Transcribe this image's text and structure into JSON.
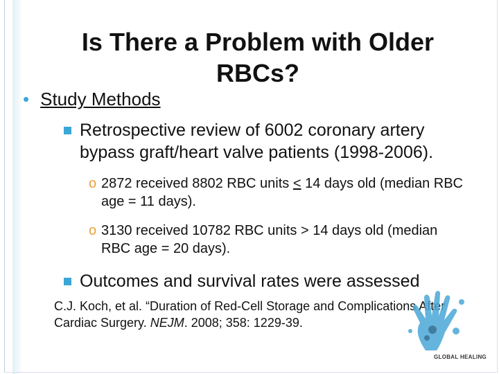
{
  "title": "Is There a Problem with Older RBCs?",
  "bullet": "Study Methods",
  "sub_bullets": [
    {
      "text": "Retrospective review of 6002 coronary artery bypass graft/heart valve patients (1998-2006).",
      "items": [
        {
          "before": "2872 received 8802 RBC units ",
          "underlined": "<",
          "after": " 14 days old (median RBC age = 11 days)."
        },
        {
          "text": "3130 received 10782 RBC units > 14 days old (median RBC age = 20 days)."
        }
      ]
    },
    {
      "text": "Outcomes and survival rates were assessed"
    }
  ],
  "citation": {
    "before": "C.J. Koch, et al. “Duration of Red-Cell Storage and Complications After Cardiac Surgery. ",
    "journal": "NEJM",
    "after": ". 2008; 358: 1229-39."
  },
  "logo": "GLOBAL HEALING"
}
